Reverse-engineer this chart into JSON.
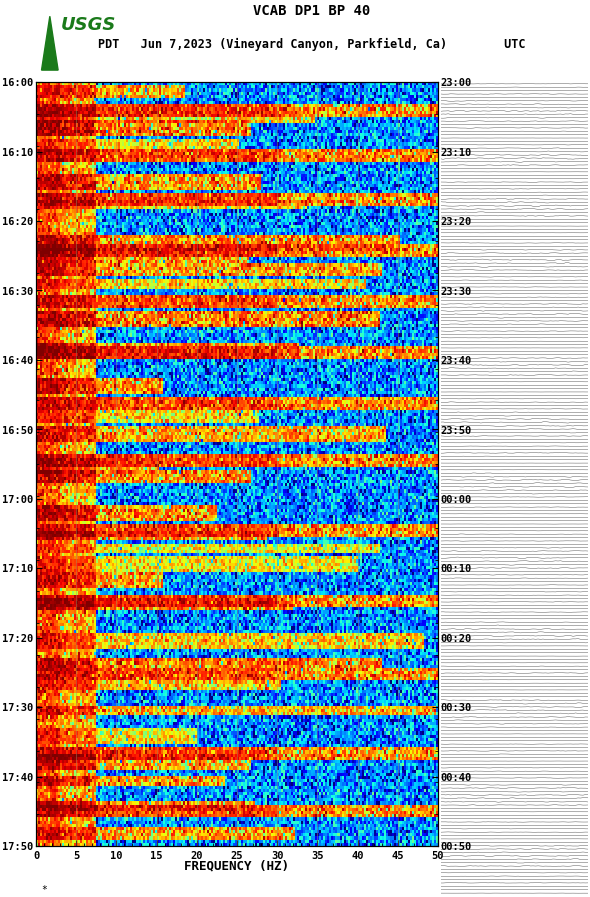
{
  "title_line1": "VCAB DP1 BP 40",
  "title_line2": "PDT   Jun 7,2023 (Vineyard Canyon, Parkfield, Ca)        UTC",
  "xlabel": "FREQUENCY (HZ)",
  "freq_min": 0,
  "freq_max": 50,
  "freq_ticks": [
    0,
    5,
    10,
    15,
    20,
    25,
    30,
    35,
    40,
    45,
    50
  ],
  "time_labels_left": [
    "16:00",
    "16:10",
    "16:20",
    "16:30",
    "16:40",
    "16:50",
    "17:00",
    "17:10",
    "17:20",
    "17:30",
    "17:40",
    "17:50"
  ],
  "time_labels_right": [
    "23:00",
    "23:10",
    "23:20",
    "23:30",
    "23:40",
    "23:50",
    "00:00",
    "00:10",
    "00:20",
    "00:30",
    "00:40",
    "00:50"
  ],
  "n_time_steps": 240,
  "n_freq_bins": 200,
  "colormap": "jet",
  "background_color": "#ffffff",
  "fig_width": 5.52,
  "fig_height": 8.93,
  "usgs_logo_color": "#1a7a1a",
  "vertical_line_positions": [
    5,
    10,
    15,
    20,
    25,
    30,
    35,
    40,
    45
  ],
  "watermark": "*"
}
